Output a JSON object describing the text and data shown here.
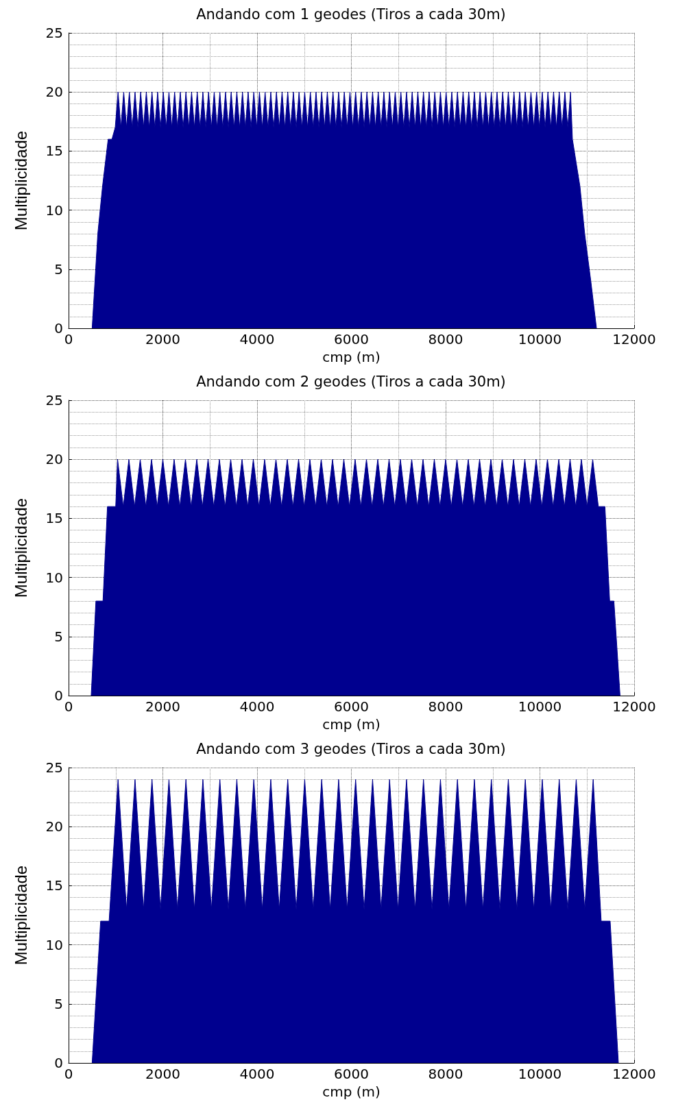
{
  "chart_data": [
    {
      "type": "area",
      "title": "Andando com 1 geodes (Tiros a cada 30m)",
      "xlabel": "cmp (m)",
      "ylabel": "Multiplicidade",
      "color": "#00008f",
      "xlim": [
        0,
        12000
      ],
      "xticks": [
        0,
        2000,
        4000,
        6000,
        8000,
        10000,
        12000
      ],
      "ylim": [
        0,
        25
      ],
      "yticks": [
        0,
        5,
        10,
        15,
        20,
        25
      ],
      "grid": true,
      "marker": "none",
      "x": [
        500,
        560,
        620,
        720,
        840,
        920,
        990,
        1050,
        1110,
        1170,
        1230,
        1290,
        1350,
        1410,
        1470,
        1530,
        1590,
        1650,
        1710,
        1770,
        1830,
        1890,
        1950,
        2010,
        2070,
        2130,
        2190,
        2250,
        2310,
        2370,
        2430,
        2490,
        2550,
        2610,
        2670,
        2730,
        2790,
        2850,
        2910,
        2970,
        3030,
        3090,
        3150,
        3210,
        3270,
        3330,
        3390,
        3450,
        3510,
        3570,
        3630,
        3690,
        3750,
        3810,
        3870,
        3930,
        3990,
        4050,
        4110,
        4170,
        4230,
        4290,
        4350,
        4410,
        4470,
        4530,
        4590,
        4650,
        4710,
        4770,
        4830,
        4890,
        4950,
        5010,
        5070,
        5130,
        5190,
        5250,
        5310,
        5370,
        5430,
        5490,
        5550,
        5610,
        5670,
        5730,
        5790,
        5850,
        5910,
        5970,
        6030,
        6090,
        6150,
        6210,
        6270,
        6330,
        6390,
        6450,
        6510,
        6570,
        6630,
        6690,
        6750,
        6810,
        6870,
        6930,
        6990,
        7050,
        7110,
        7170,
        7230,
        7290,
        7350,
        7410,
        7470,
        7530,
        7590,
        7650,
        7710,
        7770,
        7830,
        7890,
        7950,
        8010,
        8070,
        8130,
        8190,
        8250,
        8310,
        8370,
        8430,
        8490,
        8550,
        8610,
        8670,
        8730,
        8790,
        8850,
        8910,
        8970,
        9030,
        9090,
        9150,
        9210,
        9270,
        9330,
        9390,
        9450,
        9510,
        9570,
        9630,
        9690,
        9750,
        9810,
        9870,
        9930,
        9990,
        10050,
        10110,
        10170,
        10230,
        10290,
        10350,
        10410,
        10470,
        10530,
        10590,
        10650,
        10690,
        10850,
        10950,
        11080,
        11200
      ],
      "values": [
        0,
        4,
        8,
        12,
        16,
        16,
        17,
        20,
        17,
        20,
        17,
        20,
        17,
        20,
        17,
        20,
        17,
        20,
        17,
        20,
        17,
        20,
        17,
        20,
        17,
        20,
        17,
        20,
        17,
        20,
        17,
        20,
        17,
        20,
        17,
        20,
        17,
        20,
        17,
        20,
        17,
        20,
        17,
        20,
        17,
        20,
        17,
        20,
        17,
        20,
        17,
        20,
        17,
        20,
        17,
        20,
        17,
        20,
        17,
        20,
        17,
        20,
        17,
        20,
        17,
        20,
        17,
        20,
        17,
        20,
        17,
        20,
        17,
        20,
        17,
        20,
        17,
        20,
        17,
        20,
        17,
        20,
        17,
        20,
        17,
        20,
        17,
        20,
        17,
        20,
        17,
        20,
        17,
        20,
        17,
        20,
        17,
        20,
        17,
        20,
        17,
        20,
        17,
        20,
        17,
        20,
        17,
        20,
        17,
        20,
        17,
        20,
        17,
        20,
        17,
        20,
        17,
        20,
        17,
        20,
        17,
        20,
        17,
        20,
        17,
        20,
        17,
        20,
        17,
        20,
        17,
        20,
        17,
        20,
        17,
        20,
        17,
        20,
        17,
        20,
        17,
        20,
        17,
        20,
        17,
        20,
        17,
        20,
        17,
        20,
        17,
        20,
        17,
        20,
        17,
        20,
        17,
        20,
        17,
        20,
        17,
        20,
        17,
        20,
        17,
        20,
        17,
        20,
        16,
        12,
        8,
        4,
        0
      ]
    },
    {
      "type": "area",
      "title": "Andando com 2 geodes (Tiros a cada 30m)",
      "xlabel": "cmp (m)",
      "ylabel": "Multiplicidade",
      "color": "#00008f",
      "xlim": [
        0,
        12000
      ],
      "xticks": [
        0,
        2000,
        4000,
        6000,
        8000,
        10000,
        12000
      ],
      "ylim": [
        0,
        25
      ],
      "yticks": [
        0,
        5,
        10,
        15,
        20,
        25
      ],
      "grid": true,
      "marker": "none",
      "x": [
        480,
        580,
        730,
        825,
        1000,
        1040,
        1160,
        1280,
        1400,
        1520,
        1640,
        1760,
        1880,
        2000,
        2120,
        2240,
        2360,
        2480,
        2600,
        2720,
        2840,
        2960,
        3080,
        3200,
        3320,
        3440,
        3560,
        3680,
        3800,
        3920,
        4040,
        4160,
        4280,
        4400,
        4520,
        4640,
        4760,
        4880,
        5000,
        5120,
        5240,
        5360,
        5480,
        5600,
        5720,
        5840,
        5960,
        6080,
        6200,
        6320,
        6440,
        6560,
        6680,
        6800,
        6920,
        7040,
        7160,
        7280,
        7400,
        7520,
        7640,
        7760,
        7880,
        8000,
        8120,
        8240,
        8360,
        8480,
        8600,
        8720,
        8840,
        8960,
        9080,
        9200,
        9320,
        9440,
        9560,
        9680,
        9800,
        9920,
        10040,
        10160,
        10280,
        10400,
        10520,
        10640,
        10760,
        10880,
        11000,
        11120,
        11240,
        11380,
        11480,
        11570,
        11700
      ],
      "values": [
        0,
        8,
        8,
        16,
        16,
        20,
        16,
        20,
        16,
        20,
        16,
        20,
        16,
        20,
        16,
        20,
        16,
        20,
        16,
        20,
        16,
        20,
        16,
        20,
        16,
        20,
        16,
        20,
        16,
        20,
        16,
        20,
        16,
        20,
        16,
        20,
        16,
        20,
        16,
        20,
        16,
        20,
        16,
        20,
        16,
        20,
        16,
        20,
        16,
        20,
        16,
        20,
        16,
        20,
        16,
        20,
        16,
        20,
        16,
        20,
        16,
        20,
        16,
        20,
        16,
        20,
        16,
        20,
        16,
        20,
        16,
        20,
        16,
        20,
        16,
        20,
        16,
        20,
        16,
        20,
        16,
        20,
        16,
        20,
        16,
        20,
        16,
        20,
        16,
        20,
        16,
        16,
        8,
        8,
        0
      ]
    },
    {
      "type": "area",
      "title": "Andando com 3 geodes (Tiros a cada 30m)",
      "xlabel": "cmp (m)",
      "ylabel": "Multiplicidade",
      "color": "#00008f",
      "xlim": [
        0,
        12000
      ],
      "xticks": [
        0,
        2000,
        4000,
        6000,
        8000,
        10000,
        12000
      ],
      "ylim": [
        0,
        25
      ],
      "yticks": [
        0,
        5,
        10,
        15,
        20,
        25
      ],
      "grid": true,
      "marker": "none",
      "x": [
        500,
        680,
        860,
        1050,
        1230,
        1410,
        1590,
        1770,
        1950,
        2130,
        2310,
        2490,
        2670,
        2850,
        3030,
        3210,
        3390,
        3570,
        3750,
        3930,
        4110,
        4290,
        4470,
        4650,
        4830,
        5010,
        5190,
        5370,
        5550,
        5730,
        5910,
        6090,
        6270,
        6450,
        6630,
        6810,
        6990,
        7170,
        7350,
        7530,
        7710,
        7890,
        8070,
        8250,
        8430,
        8610,
        8790,
        8970,
        9150,
        9330,
        9510,
        9690,
        9870,
        10050,
        10230,
        10410,
        10590,
        10770,
        10950,
        11130,
        11300,
        11490,
        11665
      ],
      "values": [
        0,
        12,
        12,
        24,
        13,
        24,
        13,
        24,
        13,
        24,
        13,
        24,
        13,
        24,
        13,
        24,
        13,
        24,
        13,
        24,
        13,
        24,
        13,
        24,
        13,
        24,
        13,
        24,
        13,
        24,
        13,
        24,
        13,
        24,
        13,
        24,
        13,
        24,
        13,
        24,
        13,
        24,
        13,
        24,
        13,
        24,
        13,
        24,
        13,
        24,
        13,
        24,
        13,
        24,
        13,
        24,
        13,
        24,
        13,
        24,
        12,
        12,
        0
      ]
    }
  ]
}
